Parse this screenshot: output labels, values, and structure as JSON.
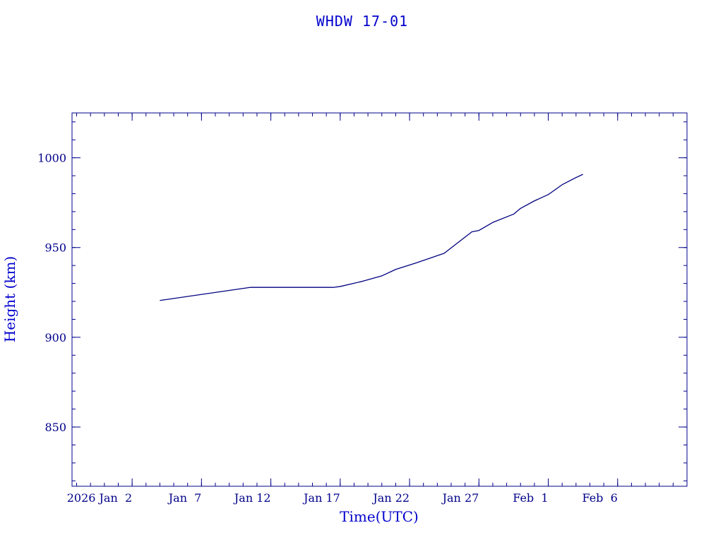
{
  "chart_data": {
    "type": "line",
    "title": "WHDW 17-01",
    "xlabel": "Time(UTC)",
    "ylabel": "Height (km)",
    "x_axis": {
      "type": "date",
      "min": "2025-12-28T16:00",
      "max": "2026-02-11T00:00",
      "tick_labels": [
        {
          "date": "2026-01-02",
          "label": "2026 Jan  2"
        },
        {
          "date": "2026-01-07",
          "label": "Jan  7"
        },
        {
          "date": "2026-01-12",
          "label": "Jan 12"
        },
        {
          "date": "2026-01-17",
          "label": "Jan 17"
        },
        {
          "date": "2026-01-22",
          "label": "Jan 22"
        },
        {
          "date": "2026-01-27",
          "label": "Jan 27"
        },
        {
          "date": "2026-02-01",
          "label": "Feb  1"
        },
        {
          "date": "2026-02-06",
          "label": "Feb  6"
        }
      ]
    },
    "y_axis": {
      "min": 817,
      "max": 1025,
      "ticks": [
        850,
        900,
        950,
        1000
      ],
      "tick_labels": [
        "850",
        "900",
        "950",
        "1000"
      ]
    },
    "grid": false,
    "series": [
      {
        "color": "#000080",
        "points": [
          {
            "x": "2026-01-04T00:00",
            "y": 920.5
          },
          {
            "x": "2026-01-10T12:00",
            "y": 927.8
          },
          {
            "x": "2026-01-16T12:00",
            "y": 927.8
          },
          {
            "x": "2026-01-17T00:00",
            "y": 928.3
          },
          {
            "x": "2026-01-18T12:00",
            "y": 931.0
          },
          {
            "x": "2026-01-20T00:00",
            "y": 934.2
          },
          {
            "x": "2026-01-21T00:00",
            "y": 937.8
          },
          {
            "x": "2026-01-22T12:00",
            "y": 941.5
          },
          {
            "x": "2026-01-24T12:00",
            "y": 946.8
          },
          {
            "x": "2026-01-26T12:00",
            "y": 958.8
          },
          {
            "x": "2026-01-27T00:00",
            "y": 959.5
          },
          {
            "x": "2026-01-28T00:00",
            "y": 964.0
          },
          {
            "x": "2026-01-29T12:00",
            "y": 968.6
          },
          {
            "x": "2026-01-30T00:00",
            "y": 971.8
          },
          {
            "x": "2026-01-31T00:00",
            "y": 976.0
          },
          {
            "x": "2026-02-01T00:00",
            "y": 979.5
          },
          {
            "x": "2026-02-02T00:00",
            "y": 985.0
          },
          {
            "x": "2026-02-03T00:00",
            "y": 989.0
          },
          {
            "x": "2026-02-03T12:00",
            "y": 990.8
          }
        ]
      }
    ]
  }
}
